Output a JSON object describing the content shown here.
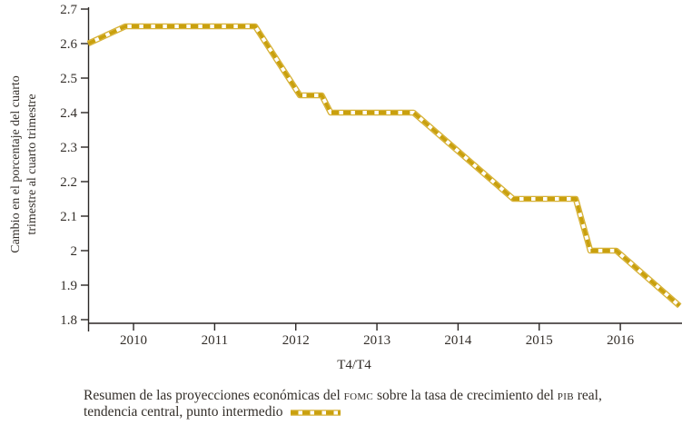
{
  "chart_data": {
    "type": "line",
    "title": "",
    "xlabel": "T4/T4",
    "ylabel": "Cambio en el porcentaje del cuarto trimestre al cuarto trimestre",
    "ylabel_lines": [
      "Cambio en el porcentaje del cuarto",
      "trimestre al cuarto trimestre"
    ],
    "xlim": [
      2009.44,
      2016.76
    ],
    "ylim": [
      1.8,
      2.7
    ],
    "grid": false,
    "legend_position": "bottom-caption",
    "x_ticks": [
      2010,
      2011,
      2012,
      2013,
      2014,
      2015,
      2016
    ],
    "y_ticks": [
      {
        "label": "2.7",
        "value": 2.7
      },
      {
        "label": "2.6",
        "value": 2.6
      },
      {
        "label": "2.5",
        "value": 2.5
      },
      {
        "label": "2.4",
        "value": 2.4
      },
      {
        "label": "2.3",
        "value": 2.3
      },
      {
        "label": "2.2",
        "value": 2.2
      },
      {
        "label": "2.1",
        "value": 2.1
      },
      {
        "label": "2",
        "value": 2.0
      },
      {
        "label": "1.9",
        "value": 1.9
      },
      {
        "label": "1.8",
        "value": 1.8
      }
    ],
    "series": [
      {
        "name": "Proyecciones FOMC crecimiento PIB real, tendencia central, punto intermedio",
        "style": "railroad-dashed",
        "color": "#cda30f",
        "points": [
          [
            2009.44,
            2.6
          ],
          [
            2009.9,
            2.65
          ],
          [
            2011.5,
            2.65
          ],
          [
            2012.05,
            2.45
          ],
          [
            2012.32,
            2.45
          ],
          [
            2012.43,
            2.4
          ],
          [
            2013.45,
            2.4
          ],
          [
            2014.68,
            2.15
          ],
          [
            2015.45,
            2.15
          ],
          [
            2015.63,
            2.0
          ],
          [
            2015.95,
            2.0
          ],
          [
            2016.73,
            1.84
          ]
        ]
      }
    ]
  },
  "caption": {
    "line1_part1": "Resumen de las proyecciones económicas del ",
    "line1_smallcaps1": "fomc",
    "line1_part2": " sobre la tasa de crecimiento del ",
    "line1_smallcaps2": "pib",
    "line1_part3": " real,",
    "line2": "tendencia central, punto intermedio"
  },
  "colors": {
    "line_gold": "#c9a00d",
    "line_gold_edge": "#d7b238",
    "line_core": "#ffffff",
    "axis": "#2b2725",
    "text": "#332e29"
  }
}
